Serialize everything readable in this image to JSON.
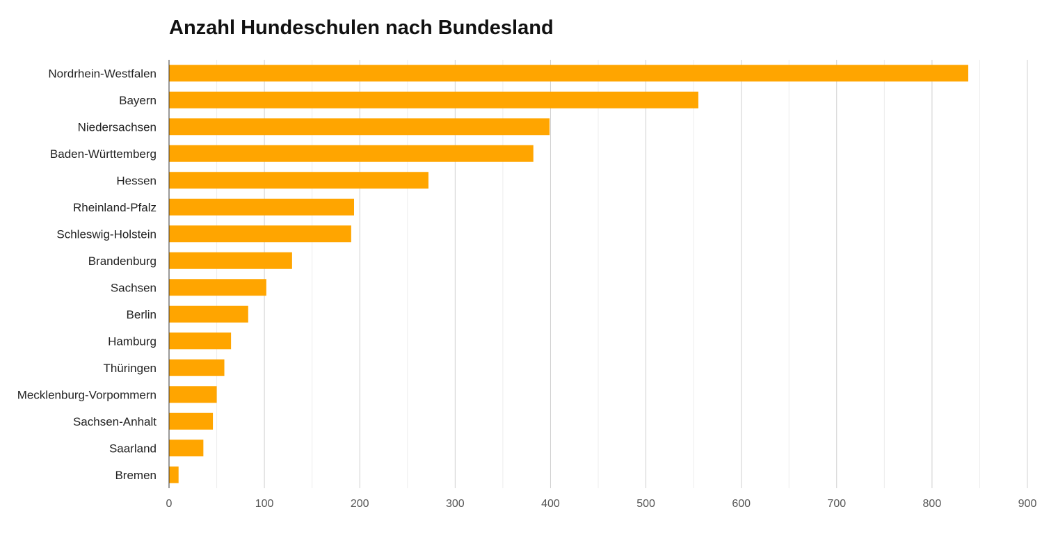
{
  "chart_data": {
    "type": "bar",
    "orientation": "horizontal",
    "title": "Anzahl Hundeschulen nach Bundesland",
    "categories": [
      "Nordrhein-Westfalen",
      "Bayern",
      "Niedersachsen",
      "Baden-Württemberg",
      "Hessen",
      "Rheinland-Pfalz",
      "Schleswig-Holstein",
      "Brandenburg",
      "Sachsen",
      "Berlin",
      "Hamburg",
      "Thüringen",
      "Mecklenburg-Vorpommern",
      "Sachsen-Anhalt",
      "Saarland",
      "Bremen"
    ],
    "values": [
      838,
      555,
      399,
      382,
      272,
      194,
      191,
      129,
      102,
      83,
      65,
      58,
      50,
      46,
      36,
      10
    ],
    "xlim": [
      0,
      900
    ],
    "xticks": [
      "0",
      "100",
      "200",
      "300",
      "400",
      "500",
      "600",
      "700",
      "800",
      "900"
    ],
    "xlabel": "",
    "ylabel": "",
    "grid": true,
    "bar_color": "#FFA500"
  }
}
